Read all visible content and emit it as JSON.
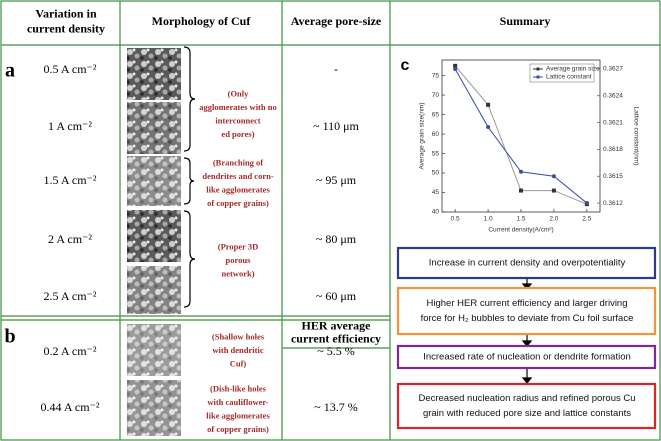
{
  "panel_labels": [
    "a",
    "b",
    "c"
  ],
  "table": {
    "headers": [
      [
        "Variation in",
        "current density"
      ],
      [
        "Morphology of Cuf"
      ],
      [
        "Average pore-size"
      ],
      [
        "Summary"
      ]
    ],
    "rows_a": [
      {
        "density": "0.5 A cm⁻²",
        "pore": "-"
      },
      {
        "density": "1 A cm⁻²",
        "pore": "~ 110 μm"
      },
      {
        "density": "1.5 A cm⁻²",
        "pore": "~ 95 μm"
      },
      {
        "density": "2 A cm⁻²",
        "pore": "~ 80 μm"
      },
      {
        "density": "2.5 A cm⁻²",
        "pore": "~ 60 μm"
      }
    ],
    "her_header": [
      "HER average",
      "current efficiency"
    ],
    "rows_b": [
      {
        "density": "0.2 A cm⁻²",
        "efficiency": "~ 5.5 %"
      },
      {
        "density": "0.44 A cm⁻²",
        "efficiency": "~ 13.7 %"
      }
    ],
    "notes": [
      [
        "(Only",
        "agglomerates with no",
        "interconnect",
        "ed pores)"
      ],
      [
        "(Branching of",
        "dendrites and corn-",
        "like agglomerates",
        "of copper grains)"
      ],
      [
        "(Proper 3D",
        "porous",
        "network)"
      ],
      [
        "(Shallow holes",
        "with dendritic",
        "Cuf)"
      ],
      [
        "(Dish-like holes",
        "with cauliflower-",
        "like agglomerates",
        "of copper grains)"
      ]
    ]
  },
  "chart_data": {
    "type": "line",
    "xlabel": "Current density(A/cm²)",
    "ylabel": "Average grain size(nm)",
    "y2label": "Lattice constant(nm)",
    "x": [
      0.5,
      1,
      1.5,
      2,
      2.5
    ],
    "series": [
      {
        "name": "Average grain size",
        "color": "#333333",
        "values": [
          77.5,
          67.5,
          45.5,
          45.5,
          42
        ]
      },
      {
        "name": "Lattice constant",
        "color": "#3a4ca8",
        "axis": "y2",
        "values": [
          0.3627,
          0.36205,
          0.36155,
          0.3615,
          0.3612
        ]
      }
    ],
    "xlim": [
      0.3,
      2.7
    ],
    "xticks": [
      0.5,
      {
        "value": 1,
        "label": "1.0"
      },
      1.5,
      {
        "value": 2,
        "label": "2.0"
      },
      2.5
    ],
    "ylim": [
      40,
      79
    ],
    "yticks": [
      40,
      45,
      50,
      55,
      60,
      65,
      70,
      75
    ],
    "y2lim": [
      0.3611,
      0.3628
    ],
    "y2ticks": [
      0.3612,
      0.3615,
      0.3618,
      0.3621,
      0.3624,
      0.3627
    ],
    "legend": "top-right"
  },
  "flow": [
    {
      "color": "#2b3a8c",
      "lines": [
        "Increase in current density and overpotentiality"
      ]
    },
    {
      "color": "#f0963a",
      "lines": [
        "Higher HER  current efficiency and larger driving",
        "force for H₂ bubbles to deviate from Cu foil surface"
      ]
    },
    {
      "color": "#7a2a9c",
      "lines": [
        "Increased rate of nucleation or dendrite formation"
      ]
    },
    {
      "color": "#d9262a",
      "lines": [
        "Decreased nucleation radius and refined porous Cu",
        "grain with reduced pore size and lattice constants"
      ]
    }
  ]
}
